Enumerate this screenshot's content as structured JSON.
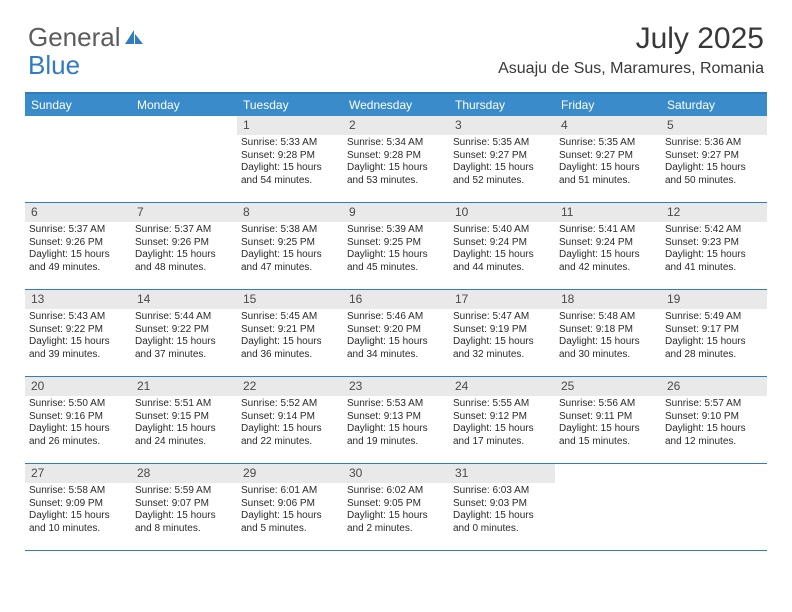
{
  "brand": {
    "part1": "General",
    "part2": "Blue"
  },
  "title": "July 2025",
  "location": "Asuaju de Sus, Maramures, Romania",
  "colors": {
    "accent": "#3a8bca",
    "border": "#2f7cc0",
    "daybar": "#e9e9e9",
    "text": "#2a2a2a"
  },
  "dow": [
    "Sunday",
    "Monday",
    "Tuesday",
    "Wednesday",
    "Thursday",
    "Friday",
    "Saturday"
  ],
  "weeks": [
    [
      null,
      null,
      {
        "n": "1",
        "sr": "Sunrise: 5:33 AM",
        "ss": "Sunset: 9:28 PM",
        "d1": "Daylight: 15 hours",
        "d2": "and 54 minutes."
      },
      {
        "n": "2",
        "sr": "Sunrise: 5:34 AM",
        "ss": "Sunset: 9:28 PM",
        "d1": "Daylight: 15 hours",
        "d2": "and 53 minutes."
      },
      {
        "n": "3",
        "sr": "Sunrise: 5:35 AM",
        "ss": "Sunset: 9:27 PM",
        "d1": "Daylight: 15 hours",
        "d2": "and 52 minutes."
      },
      {
        "n": "4",
        "sr": "Sunrise: 5:35 AM",
        "ss": "Sunset: 9:27 PM",
        "d1": "Daylight: 15 hours",
        "d2": "and 51 minutes."
      },
      {
        "n": "5",
        "sr": "Sunrise: 5:36 AM",
        "ss": "Sunset: 9:27 PM",
        "d1": "Daylight: 15 hours",
        "d2": "and 50 minutes."
      }
    ],
    [
      {
        "n": "6",
        "sr": "Sunrise: 5:37 AM",
        "ss": "Sunset: 9:26 PM",
        "d1": "Daylight: 15 hours",
        "d2": "and 49 minutes."
      },
      {
        "n": "7",
        "sr": "Sunrise: 5:37 AM",
        "ss": "Sunset: 9:26 PM",
        "d1": "Daylight: 15 hours",
        "d2": "and 48 minutes."
      },
      {
        "n": "8",
        "sr": "Sunrise: 5:38 AM",
        "ss": "Sunset: 9:25 PM",
        "d1": "Daylight: 15 hours",
        "d2": "and 47 minutes."
      },
      {
        "n": "9",
        "sr": "Sunrise: 5:39 AM",
        "ss": "Sunset: 9:25 PM",
        "d1": "Daylight: 15 hours",
        "d2": "and 45 minutes."
      },
      {
        "n": "10",
        "sr": "Sunrise: 5:40 AM",
        "ss": "Sunset: 9:24 PM",
        "d1": "Daylight: 15 hours",
        "d2": "and 44 minutes."
      },
      {
        "n": "11",
        "sr": "Sunrise: 5:41 AM",
        "ss": "Sunset: 9:24 PM",
        "d1": "Daylight: 15 hours",
        "d2": "and 42 minutes."
      },
      {
        "n": "12",
        "sr": "Sunrise: 5:42 AM",
        "ss": "Sunset: 9:23 PM",
        "d1": "Daylight: 15 hours",
        "d2": "and 41 minutes."
      }
    ],
    [
      {
        "n": "13",
        "sr": "Sunrise: 5:43 AM",
        "ss": "Sunset: 9:22 PM",
        "d1": "Daylight: 15 hours",
        "d2": "and 39 minutes."
      },
      {
        "n": "14",
        "sr": "Sunrise: 5:44 AM",
        "ss": "Sunset: 9:22 PM",
        "d1": "Daylight: 15 hours",
        "d2": "and 37 minutes."
      },
      {
        "n": "15",
        "sr": "Sunrise: 5:45 AM",
        "ss": "Sunset: 9:21 PM",
        "d1": "Daylight: 15 hours",
        "d2": "and 36 minutes."
      },
      {
        "n": "16",
        "sr": "Sunrise: 5:46 AM",
        "ss": "Sunset: 9:20 PM",
        "d1": "Daylight: 15 hours",
        "d2": "and 34 minutes."
      },
      {
        "n": "17",
        "sr": "Sunrise: 5:47 AM",
        "ss": "Sunset: 9:19 PM",
        "d1": "Daylight: 15 hours",
        "d2": "and 32 minutes."
      },
      {
        "n": "18",
        "sr": "Sunrise: 5:48 AM",
        "ss": "Sunset: 9:18 PM",
        "d1": "Daylight: 15 hours",
        "d2": "and 30 minutes."
      },
      {
        "n": "19",
        "sr": "Sunrise: 5:49 AM",
        "ss": "Sunset: 9:17 PM",
        "d1": "Daylight: 15 hours",
        "d2": "and 28 minutes."
      }
    ],
    [
      {
        "n": "20",
        "sr": "Sunrise: 5:50 AM",
        "ss": "Sunset: 9:16 PM",
        "d1": "Daylight: 15 hours",
        "d2": "and 26 minutes."
      },
      {
        "n": "21",
        "sr": "Sunrise: 5:51 AM",
        "ss": "Sunset: 9:15 PM",
        "d1": "Daylight: 15 hours",
        "d2": "and 24 minutes."
      },
      {
        "n": "22",
        "sr": "Sunrise: 5:52 AM",
        "ss": "Sunset: 9:14 PM",
        "d1": "Daylight: 15 hours",
        "d2": "and 22 minutes."
      },
      {
        "n": "23",
        "sr": "Sunrise: 5:53 AM",
        "ss": "Sunset: 9:13 PM",
        "d1": "Daylight: 15 hours",
        "d2": "and 19 minutes."
      },
      {
        "n": "24",
        "sr": "Sunrise: 5:55 AM",
        "ss": "Sunset: 9:12 PM",
        "d1": "Daylight: 15 hours",
        "d2": "and 17 minutes."
      },
      {
        "n": "25",
        "sr": "Sunrise: 5:56 AM",
        "ss": "Sunset: 9:11 PM",
        "d1": "Daylight: 15 hours",
        "d2": "and 15 minutes."
      },
      {
        "n": "26",
        "sr": "Sunrise: 5:57 AM",
        "ss": "Sunset: 9:10 PM",
        "d1": "Daylight: 15 hours",
        "d2": "and 12 minutes."
      }
    ],
    [
      {
        "n": "27",
        "sr": "Sunrise: 5:58 AM",
        "ss": "Sunset: 9:09 PM",
        "d1": "Daylight: 15 hours",
        "d2": "and 10 minutes."
      },
      {
        "n": "28",
        "sr": "Sunrise: 5:59 AM",
        "ss": "Sunset: 9:07 PM",
        "d1": "Daylight: 15 hours",
        "d2": "and 8 minutes."
      },
      {
        "n": "29",
        "sr": "Sunrise: 6:01 AM",
        "ss": "Sunset: 9:06 PM",
        "d1": "Daylight: 15 hours",
        "d2": "and 5 minutes."
      },
      {
        "n": "30",
        "sr": "Sunrise: 6:02 AM",
        "ss": "Sunset: 9:05 PM",
        "d1": "Daylight: 15 hours",
        "d2": "and 2 minutes."
      },
      {
        "n": "31",
        "sr": "Sunrise: 6:03 AM",
        "ss": "Sunset: 9:03 PM",
        "d1": "Daylight: 15 hours",
        "d2": "and 0 minutes."
      },
      null,
      null
    ]
  ]
}
